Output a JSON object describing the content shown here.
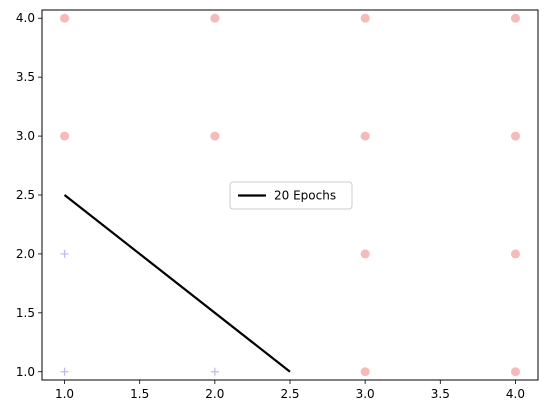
{
  "chart_data": {
    "type": "scatter",
    "title": "",
    "xlabel": "",
    "ylabel": "",
    "xlim": [
      0.85,
      4.15
    ],
    "ylim": [
      0.93,
      4.07
    ],
    "xticks": [
      "1.0",
      "1.5",
      "2.0",
      "2.5",
      "3.0",
      "3.5",
      "4.0"
    ],
    "yticks": [
      "1.0",
      "1.5",
      "2.0",
      "2.5",
      "3.0",
      "3.5",
      "4.0"
    ],
    "grid": false,
    "legend_placement": "center",
    "series": [
      {
        "marker": "circle",
        "color": "#f4a3a3",
        "points": [
          [
            1,
            4
          ],
          [
            2,
            4
          ],
          [
            3,
            4
          ],
          [
            4,
            4
          ],
          [
            1,
            3
          ],
          [
            2,
            3
          ],
          [
            3,
            3
          ],
          [
            4,
            3
          ],
          [
            3,
            2
          ],
          [
            4,
            2
          ],
          [
            3,
            1
          ],
          [
            4,
            1
          ]
        ]
      },
      {
        "marker": "plus",
        "color": "#b9b9ff",
        "points": [
          [
            1,
            2
          ],
          [
            1,
            1
          ],
          [
            2,
            1
          ]
        ]
      },
      {
        "name": "20 Epochs",
        "marker": "line",
        "color": "#000000",
        "points": [
          [
            1,
            2.5
          ],
          [
            2.5,
            1
          ]
        ]
      }
    ]
  }
}
